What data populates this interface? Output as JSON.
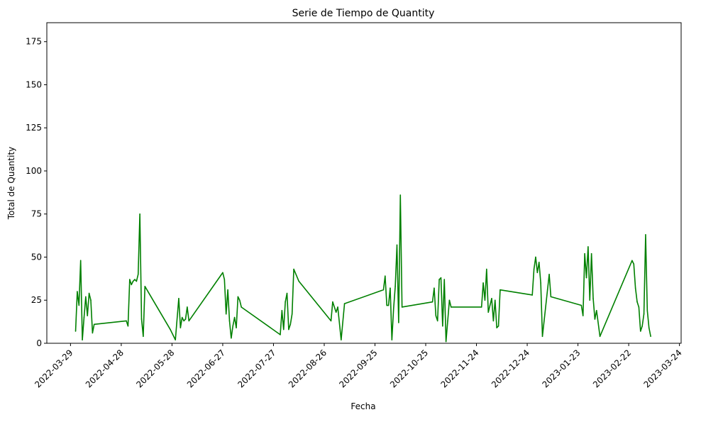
{
  "chart_data": {
    "type": "line",
    "title": "Serie de Tiempo de Quantity",
    "xlabel": "Fecha",
    "ylabel": "Total de Quantity",
    "ylim": [
      0,
      186
    ],
    "xlim": [
      "2022-03-15",
      "2023-03-25"
    ],
    "yticks": [
      0,
      25,
      50,
      75,
      100,
      125,
      150,
      175
    ],
    "xticks": [
      "2022-03-29",
      "2022-04-28",
      "2022-05-28",
      "2022-06-27",
      "2022-07-27",
      "2022-08-26",
      "2022-09-25",
      "2022-10-25",
      "2022-11-24",
      "2022-12-24",
      "2023-01-23",
      "2023-02-22",
      "2023-03-24"
    ],
    "grid": false,
    "legend": "none",
    "series": [
      {
        "color": "#008000",
        "points": [
          [
            "2022-04-01",
            7
          ],
          [
            "2022-04-02",
            30
          ],
          [
            "2022-04-03",
            22
          ],
          [
            "2022-04-04",
            48
          ],
          [
            "2022-04-05",
            2
          ],
          [
            "2022-04-06",
            15
          ],
          [
            "2022-04-07",
            27
          ],
          [
            "2022-04-08",
            16
          ],
          [
            "2022-04-09",
            29
          ],
          [
            "2022-04-10",
            25
          ],
          [
            "2022-04-11",
            6
          ],
          [
            "2022-04-12",
            11
          ],
          [
            "2022-05-01",
            13
          ],
          [
            "2022-05-02",
            10
          ],
          [
            "2022-05-03",
            37
          ],
          [
            "2022-05-04",
            34
          ],
          [
            "2022-05-05",
            36
          ],
          [
            "2022-05-06",
            37
          ],
          [
            "2022-05-07",
            36
          ],
          [
            "2022-05-08",
            40
          ],
          [
            "2022-05-09",
            75
          ],
          [
            "2022-05-10",
            14
          ],
          [
            "2022-05-11",
            4
          ],
          [
            "2022-05-12",
            33
          ],
          [
            "2022-05-27",
            8
          ],
          [
            "2022-05-30",
            2
          ],
          [
            "2022-06-01",
            26
          ],
          [
            "2022-06-02",
            9
          ],
          [
            "2022-06-03",
            15
          ],
          [
            "2022-06-04",
            13
          ],
          [
            "2022-06-05",
            14
          ],
          [
            "2022-06-06",
            21
          ],
          [
            "2022-06-07",
            13
          ],
          [
            "2022-06-27",
            41
          ],
          [
            "2022-06-28",
            37
          ],
          [
            "2022-06-29",
            17
          ],
          [
            "2022-06-30",
            31
          ],
          [
            "2022-07-01",
            13
          ],
          [
            "2022-07-02",
            3
          ],
          [
            "2022-07-03",
            10
          ],
          [
            "2022-07-04",
            15
          ],
          [
            "2022-07-05",
            9
          ],
          [
            "2022-07-06",
            27
          ],
          [
            "2022-07-07",
            25
          ],
          [
            "2022-07-08",
            21
          ],
          [
            "2022-07-31",
            5
          ],
          [
            "2022-08-01",
            19
          ],
          [
            "2022-08-02",
            8
          ],
          [
            "2022-08-03",
            24
          ],
          [
            "2022-08-04",
            29
          ],
          [
            "2022-08-05",
            8
          ],
          [
            "2022-08-06",
            11
          ],
          [
            "2022-08-07",
            17
          ],
          [
            "2022-08-08",
            43
          ],
          [
            "2022-08-11",
            36
          ],
          [
            "2022-08-30",
            13
          ],
          [
            "2022-08-31",
            24
          ],
          [
            "2022-09-02",
            18
          ],
          [
            "2022-09-03",
            21
          ],
          [
            "2022-09-05",
            2
          ],
          [
            "2022-09-07",
            23
          ],
          [
            "2022-09-30",
            31
          ],
          [
            "2022-10-01",
            39
          ],
          [
            "2022-10-02",
            22
          ],
          [
            "2022-10-03",
            22
          ],
          [
            "2022-10-04",
            32
          ],
          [
            "2022-10-05",
            2
          ],
          [
            "2022-10-06",
            20
          ],
          [
            "2022-10-07",
            33
          ],
          [
            "2022-10-08",
            57
          ],
          [
            "2022-10-09",
            12
          ],
          [
            "2022-10-10",
            86
          ],
          [
            "2022-10-11",
            21
          ],
          [
            "2022-10-29",
            24
          ],
          [
            "2022-10-30",
            32
          ],
          [
            "2022-10-31",
            16
          ],
          [
            "2022-11-01",
            13
          ],
          [
            "2022-11-02",
            37
          ],
          [
            "2022-11-03",
            38
          ],
          [
            "2022-11-04",
            10
          ],
          [
            "2022-11-05",
            37
          ],
          [
            "2022-11-06",
            1
          ],
          [
            "2022-11-07",
            13
          ],
          [
            "2022-11-08",
            25
          ],
          [
            "2022-11-09",
            21
          ],
          [
            "2022-11-27",
            21
          ],
          [
            "2022-11-28",
            35
          ],
          [
            "2022-11-29",
            25
          ],
          [
            "2022-11-30",
            43
          ],
          [
            "2022-12-01",
            18
          ],
          [
            "2022-12-02",
            22
          ],
          [
            "2022-12-03",
            26
          ],
          [
            "2022-12-04",
            13
          ],
          [
            "2022-12-05",
            25
          ],
          [
            "2022-12-06",
            9
          ],
          [
            "2022-12-07",
            10
          ],
          [
            "2022-12-08",
            31
          ],
          [
            "2022-12-27",
            28
          ],
          [
            "2022-12-28",
            43
          ],
          [
            "2022-12-29",
            50
          ],
          [
            "2022-12-30",
            41
          ],
          [
            "2022-12-31",
            47
          ],
          [
            "2023-01-01",
            35
          ],
          [
            "2023-01-02",
            4
          ],
          [
            "2023-01-05",
            31
          ],
          [
            "2023-01-06",
            40
          ],
          [
            "2023-01-07",
            27
          ],
          [
            "2023-01-25",
            22
          ],
          [
            "2023-01-26",
            16
          ],
          [
            "2023-01-27",
            52
          ],
          [
            "2023-01-28",
            38
          ],
          [
            "2023-01-29",
            56
          ],
          [
            "2023-01-30",
            25
          ],
          [
            "2023-01-31",
            52
          ],
          [
            "2023-02-01",
            26
          ],
          [
            "2023-02-02",
            14
          ],
          [
            "2023-02-03",
            19
          ],
          [
            "2023-02-05",
            4
          ],
          [
            "2023-02-24",
            48
          ],
          [
            "2023-02-25",
            46
          ],
          [
            "2023-02-26",
            32
          ],
          [
            "2023-02-27",
            24
          ],
          [
            "2023-02-28",
            21
          ],
          [
            "2023-03-01",
            7
          ],
          [
            "2023-03-02",
            10
          ],
          [
            "2023-03-03",
            17
          ],
          [
            "2023-03-04",
            63
          ],
          [
            "2023-03-05",
            19
          ],
          [
            "2023-03-06",
            9
          ],
          [
            "2023-03-07",
            4
          ]
        ]
      }
    ]
  }
}
